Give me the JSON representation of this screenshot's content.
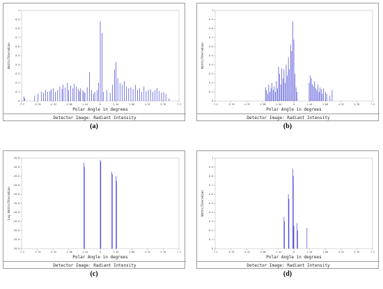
{
  "chart_data": [
    {
      "panel": "(a)",
      "type": "bar",
      "xlabel": "Polar Angle in degrees",
      "ylabel": "Watts/Steradian",
      "footer": "Detector Image: Radiant Intensity",
      "xlim": [
        -7.2,
        7.2
      ],
      "ylim": [
        0,
        1
      ],
      "xticks": [
        "-7.2",
        "-5.76",
        "-4.32",
        "-2.88",
        "-1.44",
        "0",
        "1.44",
        "2.88",
        "4.32",
        "5.76",
        "7.2"
      ],
      "yticks": [
        "0",
        "0.1",
        "0.2",
        "0.3",
        "0.4",
        "0.5",
        "0.6",
        "0.7",
        "0.8",
        "0.9",
        "1"
      ],
      "bar_color": "#2222cc",
      "bars": {
        "x": [
          -7.0,
          -6.9,
          -6.0,
          -5.7,
          -5.4,
          -5.2,
          -5.0,
          -4.8,
          -4.6,
          -4.5,
          -4.3,
          -4.1,
          -3.9,
          -3.7,
          -3.5,
          -3.4,
          -3.2,
          -3.0,
          -2.9,
          -2.7,
          -2.5,
          -2.4,
          -2.2,
          -2.0,
          -1.9,
          -1.8,
          -1.6,
          -1.5,
          -1.4,
          -1.2,
          -1.0,
          -0.8,
          -0.6,
          -0.5,
          -0.3,
          -0.15,
          0.0,
          0.15,
          0.3,
          0.6,
          0.9,
          1.1,
          1.3,
          1.45,
          1.6,
          1.8,
          2.0,
          2.2,
          2.4,
          2.6,
          2.8,
          3.0,
          3.2,
          3.4,
          3.6,
          3.8,
          4.0,
          4.2,
          4.4,
          4.6,
          4.8,
          5.0,
          5.2,
          5.4,
          5.6,
          5.8,
          6.0,
          6.3
        ],
        "values": [
          0.05,
          0.03,
          0.06,
          0.08,
          0.1,
          0.09,
          0.12,
          0.1,
          0.11,
          0.13,
          0.14,
          0.1,
          0.12,
          0.16,
          0.13,
          0.18,
          0.15,
          0.2,
          0.12,
          0.17,
          0.14,
          0.19,
          0.16,
          0.13,
          0.11,
          0.14,
          0.12,
          0.1,
          0.09,
          0.15,
          0.32,
          0.12,
          0.08,
          0.1,
          0.12,
          0.2,
          0.88,
          0.75,
          0.1,
          0.12,
          0.09,
          0.18,
          0.35,
          0.43,
          0.25,
          0.2,
          0.18,
          0.22,
          0.16,
          0.14,
          0.15,
          0.13,
          0.18,
          0.12,
          0.14,
          0.1,
          0.16,
          0.11,
          0.12,
          0.13,
          0.1,
          0.12,
          0.14,
          0.11,
          0.09,
          0.1,
          0.08,
          0.03
        ]
      }
    },
    {
      "panel": "(b)",
      "type": "bar",
      "xlabel": "Polar Angle in degrees",
      "ylabel": "Watts/Steradian",
      "footer": "Detector Image: Radiant Intensity",
      "xlim": [
        -7.2,
        7.2
      ],
      "ylim": [
        0,
        1
      ],
      "xticks": [
        "-7.2",
        "-5.76",
        "-4.32",
        "-2.88",
        "-1.44",
        "0",
        "1.44",
        "2.88",
        "4.32",
        "5.76",
        "7.2"
      ],
      "yticks": [
        "0",
        "0.1",
        "0.2",
        "0.3",
        "0.4",
        "0.5",
        "0.6",
        "0.7",
        "0.8",
        "0.9",
        "1"
      ],
      "bar_color": "#2222cc",
      "bars": {
        "x": [
          -2.6,
          -2.5,
          -2.4,
          -2.3,
          -2.2,
          -2.1,
          -2.0,
          -1.9,
          -1.8,
          -1.7,
          -1.6,
          -1.5,
          -1.4,
          -1.3,
          -1.2,
          -1.1,
          -1.0,
          -0.9,
          -0.8,
          -0.7,
          -0.6,
          -0.5,
          -0.4,
          -0.3,
          -0.2,
          -0.1,
          0.0,
          0.1,
          0.2,
          0.3,
          1.4,
          1.5,
          1.6,
          1.7,
          1.8,
          1.9,
          2.0,
          2.1,
          2.2,
          2.3,
          2.4,
          2.5,
          2.6,
          2.7,
          2.9,
          3.0,
          3.3,
          3.5
        ],
        "values": [
          0.15,
          0.12,
          0.08,
          0.18,
          0.1,
          0.14,
          0.2,
          0.12,
          0.16,
          0.1,
          0.22,
          0.14,
          0.38,
          0.3,
          0.18,
          0.36,
          0.25,
          0.35,
          0.2,
          0.4,
          0.28,
          0.48,
          0.35,
          0.62,
          0.55,
          0.88,
          0.68,
          0.3,
          0.15,
          0.1,
          0.2,
          0.28,
          0.25,
          0.18,
          0.16,
          0.22,
          0.14,
          0.12,
          0.18,
          0.1,
          0.15,
          0.13,
          0.08,
          0.14,
          0.1,
          0.08,
          0.06,
          0.12
        ]
      }
    },
    {
      "panel": "(c)",
      "type": "bar",
      "xlabel": "Polar Angle in degrees",
      "ylabel": "Log Watts/Steradian",
      "footer": "Detector Image: Radiant Intensity",
      "xlim": [
        -7.2,
        7.2
      ],
      "ylim": [
        -20.0,
        -19.99
      ],
      "xticks": [
        "-7.2",
        "-5.76",
        "-4.32",
        "-2.88",
        "-1.44",
        "0",
        "1.44",
        "2.88",
        "4.32",
        "5.76",
        "7.2"
      ],
      "yticks": [
        "-20.0",
        "-20.0",
        "-20.0",
        "-20.0",
        "-20.0",
        "-20.0",
        "-20.0",
        "-20.0",
        "-20.0",
        "-20.0",
        "-20.0"
      ],
      "bar_color": "#2222cc",
      "bars": {
        "x": [
          -1.5,
          -1.45,
          0.0,
          0.05,
          1.05,
          1.1,
          1.45,
          1.5
        ],
        "values": [
          -19.9905,
          -19.991,
          -19.9902,
          -19.9904,
          -19.9915,
          -19.9918,
          -19.992,
          -19.9925
        ]
      }
    },
    {
      "panel": "(d)",
      "type": "bar",
      "xlabel": "Polar Angle in degrees",
      "ylabel": "Watts/Steradian",
      "footer": "Detector Image: Radiant Intensity",
      "xlim": [
        -7.2,
        7.2
      ],
      "ylim": [
        0,
        1
      ],
      "xticks": [
        "-7.2",
        "-5.76",
        "-4.32",
        "-2.88",
        "-1.44",
        "0",
        "1.44",
        "2.88",
        "4.32",
        "5.76",
        "7.2"
      ],
      "yticks": [
        "0",
        "0.1",
        "0.2",
        "0.3",
        "0.4",
        "0.5",
        "0.6",
        "0.7",
        "0.8",
        "0.9",
        "1"
      ],
      "bar_color": "#2222cc",
      "bars": {
        "x": [
          -0.9,
          -0.85,
          -0.5,
          -0.45,
          -0.1,
          -0.05,
          0.0,
          0.3,
          0.35,
          1.2
        ],
        "values": [
          0.35,
          0.3,
          0.6,
          0.55,
          0.88,
          0.8,
          0.25,
          0.28,
          0.2,
          0.23
        ]
      }
    }
  ]
}
